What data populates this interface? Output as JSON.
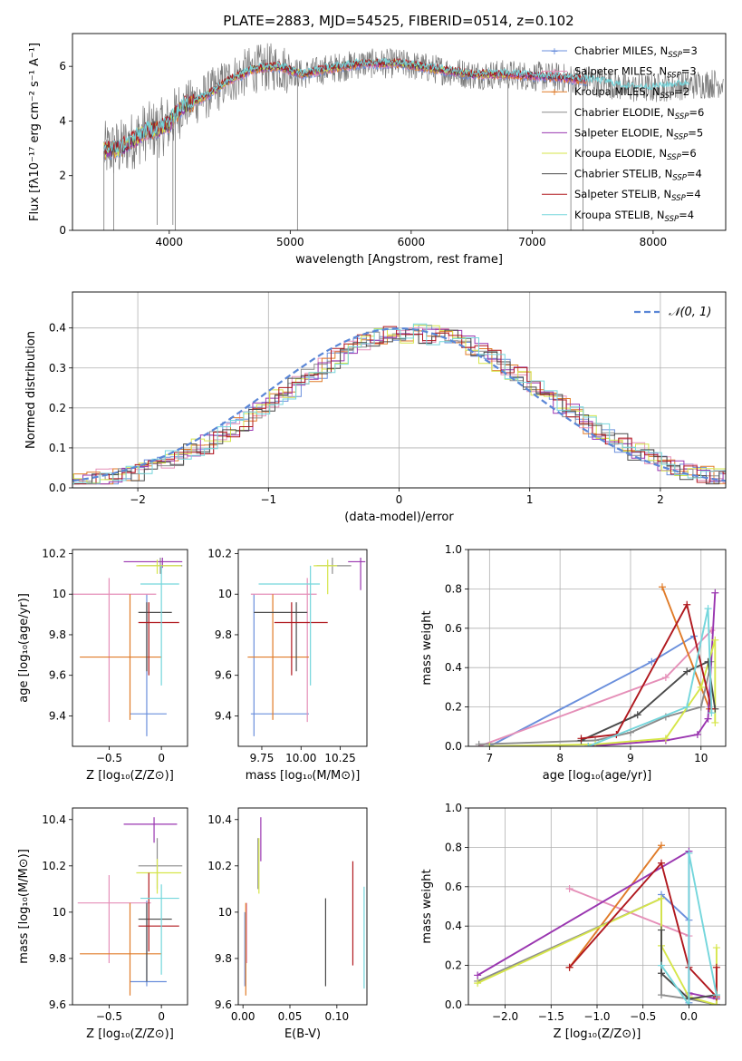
{
  "figure": {
    "title": "PLATE=2883, MJD=54525, FIBERID=0514, z=0.102"
  },
  "colors": {
    "Chabrier MILES": "#6a8fdc",
    "Salpeter MILES": "#e58fb8",
    "Kroupa MILES": "#e07b28",
    "Chabrier ELODIE": "#8c8c8c",
    "Salpeter ELODIE": "#9a36b0",
    "Kroupa ELODIE": "#d6e64a",
    "Chabrier STELIB": "#4a4a4a",
    "Salpeter STELIB": "#b0181e",
    "Kroupa STELIB": "#74d6dc"
  },
  "chart_data": [
    {
      "id": "spectrum",
      "type": "line",
      "xlabel": "wavelength [Angstrom, rest frame]",
      "ylabel": "Flux [fλ10⁻¹⁷ erg cm⁻² s⁻¹ A⁻¹]",
      "xlim": [
        3200,
        8600
      ],
      "ylim": [
        0,
        7.2
      ],
      "xticks": [
        4000,
        5000,
        6000,
        7000,
        8000
      ],
      "yticks": [
        0,
        2,
        4,
        6
      ],
      "legend_position": "right",
      "legend": [
        {
          "label": "Chabrier MILES, N",
          "sub": "SSP",
          "n": "=3"
        },
        {
          "label": "Salpeter MILES, N",
          "sub": "SSP",
          "n": "=3"
        },
        {
          "label": "Kroupa MILES, N",
          "sub": "SSP",
          "n": "=2"
        },
        {
          "label": "Chabrier ELODIE, N",
          "sub": "SSP",
          "n": "=6"
        },
        {
          "label": "Salpeter ELODIE, N",
          "sub": "SSP",
          "n": "=5"
        },
        {
          "label": "Kroupa ELODIE, N",
          "sub": "SSP",
          "n": "=6"
        },
        {
          "label": "Chabrier STELIB, N",
          "sub": "SSP",
          "n": "=4"
        },
        {
          "label": "Salpeter STELIB, N",
          "sub": "SSP",
          "n": "=4"
        },
        {
          "label": "Kroupa STELIB, N",
          "sub": "SSP",
          "n": "=4"
        }
      ],
      "continuum": [
        [
          3450,
          2.9
        ],
        [
          3600,
          3.0
        ],
        [
          3700,
          3.3
        ],
        [
          3800,
          3.6
        ],
        [
          3900,
          3.7
        ],
        [
          4000,
          3.9
        ],
        [
          4100,
          4.5
        ],
        [
          4300,
          4.9
        ],
        [
          4500,
          5.5
        ],
        [
          4700,
          5.9
        ],
        [
          4900,
          6.0
        ],
        [
          5100,
          5.7
        ],
        [
          5300,
          5.9
        ],
        [
          5600,
          6.1
        ],
        [
          5900,
          6.1
        ],
        [
          6200,
          5.9
        ],
        [
          6500,
          5.7
        ],
        [
          6800,
          5.7
        ],
        [
          7200,
          5.6
        ],
        [
          7600,
          5.4
        ],
        [
          7800,
          5.2
        ],
        [
          8000,
          5.2
        ],
        [
          8200,
          5.3
        ],
        [
          8600,
          5.4
        ]
      ],
      "model_end": [
        7450,
        7450,
        7450,
        6800,
        7450,
        6800,
        7450,
        7450,
        8300
      ],
      "spikes": [
        [
          3460,
          0
        ],
        [
          3540,
          0
        ],
        [
          3900,
          0.2
        ],
        [
          4030,
          0.2
        ],
        [
          4050,
          0
        ],
        [
          5060,
          0
        ],
        [
          6800,
          0
        ],
        [
          7320,
          0
        ],
        [
          7420,
          0
        ]
      ]
    },
    {
      "id": "residuals",
      "type": "histogram",
      "xlabel": "(data-model)/error",
      "ylabel": "Normed distribution",
      "xlim": [
        -2.5,
        2.5
      ],
      "ylim": [
        0,
        0.49
      ],
      "xticks": [
        -2,
        -1,
        0,
        1,
        2
      ],
      "yticks": [
        0.0,
        0.1,
        0.2,
        0.3,
        0.4
      ],
      "grid": true,
      "bin_width": 0.1,
      "normal_curve": {
        "label": "𝒩(0, 1)",
        "mean": 0.0,
        "sigma": 1.0,
        "color": "#5a86d6"
      },
      "legend_position": "upper right"
    },
    {
      "id": "age_vs_Z",
      "type": "errorbar",
      "xlabel": "Z [log₁₀(Z/Z⊙)]",
      "ylabel": "age  [log₁₀(age/yr)]",
      "xlim": [
        -0.85,
        0.25
      ],
      "ylim": [
        9.25,
        10.22
      ],
      "xticks": [
        -0.5,
        0.0
      ],
      "yticks": [
        9.4,
        9.6,
        9.8,
        10.0,
        10.2
      ],
      "points": [
        {
          "s": "Chabrier MILES",
          "x": -0.14,
          "xl": -0.3,
          "xh": 0.05,
          "y": 9.41,
          "yl": 9.3,
          "yh": 10.0
        },
        {
          "s": "Salpeter MILES",
          "x": -0.5,
          "xl": -0.85,
          "xh": -0.05,
          "y": 10.0,
          "yl": 9.37,
          "yh": 10.08
        },
        {
          "s": "Kroupa MILES",
          "x": -0.3,
          "xl": -0.78,
          "xh": 0.0,
          "y": 9.69,
          "yl": 9.38,
          "yh": 10.0
        },
        {
          "s": "Chabrier ELODIE",
          "x": -0.01,
          "xl": -0.22,
          "xh": 0.2,
          "y": 10.14,
          "yl": 10.1,
          "yh": 10.18
        },
        {
          "s": "Salpeter ELODIE",
          "x": 0.01,
          "xl": -0.36,
          "xh": 0.2,
          "y": 10.16,
          "yl": 10.13,
          "yh": 10.18
        },
        {
          "s": "Kroupa ELODIE",
          "x": -0.04,
          "xl": -0.24,
          "xh": 0.19,
          "y": 10.14,
          "yl": 10.1,
          "yh": 10.17
        },
        {
          "s": "Chabrier STELIB",
          "x": -0.14,
          "xl": -0.22,
          "xh": 0.1,
          "y": 9.91,
          "yl": 9.62,
          "yh": 9.96
        },
        {
          "s": "Salpeter STELIB",
          "x": -0.12,
          "xl": -0.22,
          "xh": 0.17,
          "y": 9.86,
          "yl": 9.6,
          "yh": 9.96
        },
        {
          "s": "Kroupa STELIB",
          "x": 0.0,
          "xl": -0.2,
          "xh": 0.17,
          "y": 10.05,
          "yl": 9.55,
          "yh": 10.14
        }
      ]
    },
    {
      "id": "age_vs_mass",
      "type": "errorbar",
      "xlabel": "mass [log₁₀(M/M⊙)]",
      "ylabel": "",
      "xlim": [
        9.6,
        10.42
      ],
      "ylim": [
        9.25,
        10.22
      ],
      "xticks": [
        9.75,
        10.0,
        10.25
      ],
      "xtick_labels": [
        "9.75",
        "10.00",
        "10.25"
      ],
      "yticks": [
        9.4,
        9.6,
        9.8,
        10.0,
        10.2
      ],
      "points": [
        {
          "s": "Chabrier MILES",
          "x": 9.7,
          "xl": 9.68,
          "xh": 10.05,
          "y": 9.41,
          "yl": 9.3,
          "yh": 10.0
        },
        {
          "s": "Salpeter MILES",
          "x": 10.04,
          "xl": 9.68,
          "xh": 10.1,
          "y": 10.0,
          "yl": 9.37,
          "yh": 10.08
        },
        {
          "s": "Kroupa MILES",
          "x": 9.82,
          "xl": 9.66,
          "xh": 10.05,
          "y": 9.69,
          "yl": 9.38,
          "yh": 10.0
        },
        {
          "s": "Chabrier ELODIE",
          "x": 10.2,
          "xl": 10.1,
          "xh": 10.32,
          "y": 10.14,
          "yl": 10.1,
          "yh": 10.18
        },
        {
          "s": "Salpeter ELODIE",
          "x": 10.38,
          "xl": 10.3,
          "xh": 10.41,
          "y": 10.16,
          "yl": 10.02,
          "yh": 10.18
        },
        {
          "s": "Kroupa ELODIE",
          "x": 10.17,
          "xl": 10.08,
          "xh": 10.23,
          "y": 10.14,
          "yl": 10.0,
          "yh": 10.17
        },
        {
          "s": "Chabrier STELIB",
          "x": 9.97,
          "xl": 9.7,
          "xh": 10.04,
          "y": 9.91,
          "yl": 9.62,
          "yh": 9.96
        },
        {
          "s": "Salpeter STELIB",
          "x": 9.94,
          "xl": 9.83,
          "xh": 10.17,
          "y": 9.86,
          "yl": 9.6,
          "yh": 9.96
        },
        {
          "s": "Kroupa STELIB",
          "x": 10.06,
          "xl": 9.73,
          "xh": 10.12,
          "y": 10.05,
          "yl": 9.55,
          "yh": 10.14
        }
      ]
    },
    {
      "id": "weight_vs_age",
      "type": "line",
      "xlabel": "age  [log₁₀(age/yr)]",
      "ylabel": "mass weight",
      "xlim": [
        6.7,
        10.35
      ],
      "ylim": [
        0,
        1.0
      ],
      "xticks": [
        7,
        8,
        9,
        10
      ],
      "yticks": [
        0.0,
        0.2,
        0.4,
        0.6,
        0.8,
        1.0
      ],
      "grid": true,
      "series": [
        {
          "s": "Chabrier MILES",
          "x": [
            7.0,
            9.3,
            9.9
          ],
          "y": [
            0.0,
            0.43,
            0.56
          ]
        },
        {
          "s": "Salpeter MILES",
          "x": [
            6.85,
            9.5,
            10.15
          ],
          "y": [
            0.0,
            0.35,
            0.59
          ]
        },
        {
          "s": "Kroupa MILES",
          "x": [
            9.45,
            10.12
          ],
          "y": [
            0.81,
            0.19
          ]
        },
        {
          "s": "Chabrier ELODIE",
          "x": [
            6.85,
            8.5,
            9.0,
            9.5,
            10.0,
            10.15
          ],
          "y": [
            0.01,
            0.03,
            0.07,
            0.15,
            0.2,
            0.43
          ]
        },
        {
          "s": "Salpeter ELODIE",
          "x": [
            8.4,
            9.5,
            9.95,
            10.1,
            10.2
          ],
          "y": [
            0.0,
            0.03,
            0.06,
            0.14,
            0.78
          ]
        },
        {
          "s": "Kroupa ELODIE",
          "x": [
            7.0,
            8.5,
            9.5,
            10.0,
            10.2,
            10.2
          ],
          "y": [
            0.0,
            0.01,
            0.04,
            0.3,
            0.54,
            0.12
          ]
        },
        {
          "s": "Chabrier STELIB",
          "x": [
            8.3,
            9.1,
            9.8,
            10.1,
            10.2
          ],
          "y": [
            0.03,
            0.16,
            0.38,
            0.43,
            0.19
          ]
        },
        {
          "s": "Salpeter STELIB",
          "x": [
            8.3,
            8.8,
            9.8,
            10.15
          ],
          "y": [
            0.04,
            0.06,
            0.72,
            0.19
          ]
        },
        {
          "s": "Kroupa STELIB",
          "x": [
            8.4,
            9.8,
            10.1,
            10.15
          ],
          "y": [
            0.0,
            0.2,
            0.7,
            0.17
          ]
        }
      ]
    },
    {
      "id": "mass_vs_Z",
      "type": "errorbar",
      "xlabel": "Z [log₁₀(Z/Z⊙)]",
      "ylabel": "mass [log₁₀(M/M⊙)]",
      "xlim": [
        -0.85,
        0.25
      ],
      "ylim": [
        9.6,
        10.45
      ],
      "xticks": [
        -0.5,
        0.0
      ],
      "yticks": [
        9.6,
        9.8,
        10.0,
        10.2,
        10.4
      ],
      "points": [
        {
          "s": "Chabrier MILES",
          "x": -0.14,
          "xl": -0.3,
          "xh": 0.05,
          "y": 9.7,
          "yl": 9.68,
          "yh": 10.05
        },
        {
          "s": "Salpeter MILES",
          "x": -0.5,
          "xl": -0.8,
          "xh": -0.1,
          "y": 10.04,
          "yl": 9.78,
          "yh": 10.16
        },
        {
          "s": "Kroupa MILES",
          "x": -0.3,
          "xl": -0.78,
          "xh": 0.0,
          "y": 9.82,
          "yl": 9.64,
          "yh": 10.04
        },
        {
          "s": "Chabrier ELODIE",
          "x": -0.04,
          "xl": -0.22,
          "xh": 0.2,
          "y": 10.2,
          "yl": 10.1,
          "yh": 10.32
        },
        {
          "s": "Salpeter ELODIE",
          "x": -0.07,
          "xl": -0.36,
          "xh": 0.15,
          "y": 10.38,
          "yl": 10.3,
          "yh": 10.41
        },
        {
          "s": "Kroupa ELODIE",
          "x": -0.04,
          "xl": -0.24,
          "xh": 0.19,
          "y": 10.17,
          "yl": 10.08,
          "yh": 10.23
        },
        {
          "s": "Chabrier STELIB",
          "x": -0.14,
          "xl": -0.22,
          "xh": 0.1,
          "y": 9.97,
          "yl": 9.7,
          "yh": 10.04
        },
        {
          "s": "Salpeter STELIB",
          "x": -0.12,
          "xl": -0.22,
          "xh": 0.17,
          "y": 9.94,
          "yl": 9.83,
          "yh": 10.17
        },
        {
          "s": "Kroupa STELIB",
          "x": 0.0,
          "xl": -0.2,
          "xh": 0.17,
          "y": 10.06,
          "yl": 9.73,
          "yh": 10.12
        }
      ]
    },
    {
      "id": "mass_vs_ebv",
      "type": "errorbar",
      "xlabel": "E(B-V)",
      "ylabel": "",
      "xlim": [
        -0.005,
        0.132
      ],
      "ylim": [
        9.6,
        10.45
      ],
      "xticks": [
        0.0,
        0.05,
        0.1
      ],
      "xtick_labels": [
        "0.00",
        "0.05",
        "0.10"
      ],
      "yticks": [
        9.6,
        9.8,
        10.0,
        10.2,
        10.4
      ],
      "points": [
        {
          "s": "Chabrier MILES",
          "x": 0.002,
          "y": 9.85,
          "yl": 9.68,
          "yh": 10.0
        },
        {
          "s": "Salpeter MILES",
          "x": 0.004,
          "y": 9.9,
          "yl": 9.78,
          "yh": 10.04
        },
        {
          "s": "Kroupa MILES",
          "x": 0.003,
          "y": 9.8,
          "yl": 9.64,
          "yh": 10.04
        },
        {
          "s": "Chabrier ELODIE",
          "x": 0.016,
          "y": 10.2,
          "yl": 10.1,
          "yh": 10.32
        },
        {
          "s": "Salpeter ELODIE",
          "x": 0.019,
          "y": 10.35,
          "yl": 10.22,
          "yh": 10.41
        },
        {
          "s": "Kroupa ELODIE",
          "x": 0.017,
          "y": 10.2,
          "yl": 10.08,
          "yh": 10.32
        },
        {
          "s": "Chabrier STELIB",
          "x": 0.088,
          "y": 9.9,
          "yl": 9.68,
          "yh": 10.06
        },
        {
          "s": "Salpeter STELIB",
          "x": 0.117,
          "y": 10.0,
          "yl": 9.77,
          "yh": 10.22
        },
        {
          "s": "Kroupa STELIB",
          "x": 0.129,
          "y": 9.9,
          "yl": 9.67,
          "yh": 10.11
        }
      ]
    },
    {
      "id": "weight_vs_Z",
      "type": "line",
      "xlabel": "Z [log₁₀(Z/Z⊙)]",
      "ylabel": "mass weight",
      "xlim": [
        -2.4,
        0.4
      ],
      "ylim": [
        0,
        1.0
      ],
      "xticks": [
        -2.0,
        -1.5,
        -1.0,
        -0.5,
        0.0
      ],
      "xtick_labels": [
        "−2.0",
        "−1.5",
        "−1.0",
        "−0.5",
        "0.0"
      ],
      "yticks": [
        0.0,
        0.2,
        0.4,
        0.6,
        0.8,
        1.0
      ],
      "grid": true,
      "series": [
        {
          "s": "Chabrier MILES",
          "x": [
            -0.3,
            0.0,
            0.0
          ],
          "y": [
            0.56,
            0.43,
            0.01
          ]
        },
        {
          "s": "Salpeter MILES",
          "x": [
            -1.3,
            0.0,
            0.0
          ],
          "y": [
            0.59,
            0.35,
            0.05
          ]
        },
        {
          "s": "Kroupa MILES",
          "x": [
            -1.3,
            -0.3
          ],
          "y": [
            0.19,
            0.81
          ]
        },
        {
          "s": "Chabrier ELODIE",
          "x": [
            -2.3,
            -0.3,
            -0.3,
            0.0,
            0.3
          ],
          "y": [
            0.12,
            0.54,
            0.05,
            0.03,
            0.0
          ]
        },
        {
          "s": "Salpeter ELODIE",
          "x": [
            -2.3,
            0.0,
            0.0,
            0.3,
            0.3
          ],
          "y": [
            0.15,
            0.78,
            0.06,
            0.03,
            0.0
          ]
        },
        {
          "s": "Kroupa ELODIE",
          "x": [
            -2.3,
            -0.3,
            -0.3,
            0.0,
            0.3,
            0.3
          ],
          "y": [
            0.11,
            0.54,
            0.3,
            0.04,
            0.0,
            0.29
          ]
        },
        {
          "s": "Chabrier STELIB",
          "x": [
            -0.3,
            -0.3,
            0.0,
            0.3
          ],
          "y": [
            0.38,
            0.16,
            0.03,
            0.05
          ]
        },
        {
          "s": "Salpeter STELIB",
          "x": [
            -1.3,
            -0.3,
            0.0,
            0.3,
            0.3
          ],
          "y": [
            0.19,
            0.72,
            0.19,
            0.04,
            0.19
          ]
        },
        {
          "s": "Kroupa STELIB",
          "x": [
            -0.3,
            0.0,
            0.0,
            0.3
          ],
          "y": [
            0.2,
            0.0,
            0.77,
            0.05
          ]
        }
      ]
    }
  ]
}
